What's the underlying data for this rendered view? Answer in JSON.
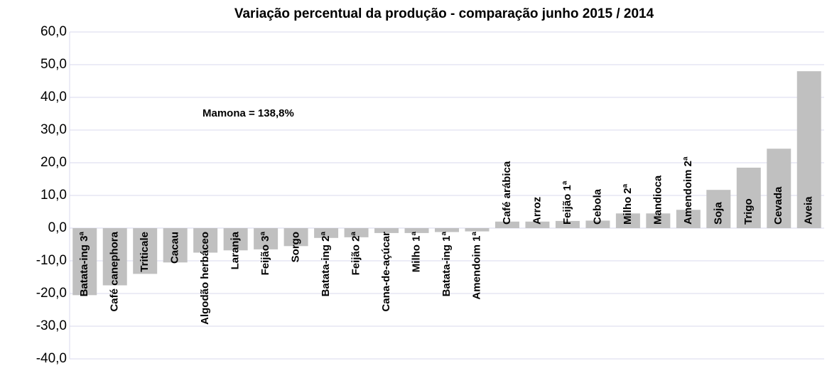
{
  "chart_data": {
    "type": "bar",
    "title": "Variação percentual da produção - comparação junho 2015 / 2014",
    "annotation": "Mamona = 138,8%",
    "categories": [
      "Batata-ing 3ª",
      "Café canephora",
      "Triticale",
      "Cacau",
      "Algodão herbáceo",
      "Laranja",
      "Feijão 3ª",
      "Sorgo",
      "Batata-ing 2ª",
      "Feijão 2ª",
      "Cana-de-açúcar",
      "Milho 1ª",
      "Batata-ing 1ª",
      "Amendoim 1ª",
      "Café arábica",
      "Arroz",
      "Feijão 1ª",
      "Cebola",
      "Milho 2ª",
      "Mandioca",
      "Amendoim 2ª",
      "Soja",
      "Trigo",
      "Cevada",
      "Aveia"
    ],
    "values": [
      -20.5,
      -17.5,
      -14,
      -10.5,
      -7.5,
      -6.8,
      -6.5,
      -5.5,
      -3,
      -2.8,
      -1.5,
      -1.5,
      -1.2,
      -1.0,
      2.0,
      2.0,
      2.2,
      2.3,
      4.5,
      4.5,
      5.6,
      11.7,
      18.5,
      24.3,
      48.0
    ],
    "color": "#c0c0c0",
    "ylim": [
      -40,
      60
    ],
    "yticks": [
      {
        "value": -40,
        "label": "-40,0"
      },
      {
        "value": -30,
        "label": "-30,0"
      },
      {
        "value": -20,
        "label": "-20,0"
      },
      {
        "value": -10,
        "label": "-10,0"
      },
      {
        "value": 0,
        "label": "0,0"
      },
      {
        "value": 10,
        "label": "10,0"
      },
      {
        "value": 20,
        "label": "20,0"
      },
      {
        "value": 30,
        "label": "30,0"
      },
      {
        "value": 40,
        "label": "40,0"
      },
      {
        "value": 50,
        "label": "50,0"
      },
      {
        "value": 60,
        "label": "60,0"
      }
    ],
    "grid": true
  }
}
